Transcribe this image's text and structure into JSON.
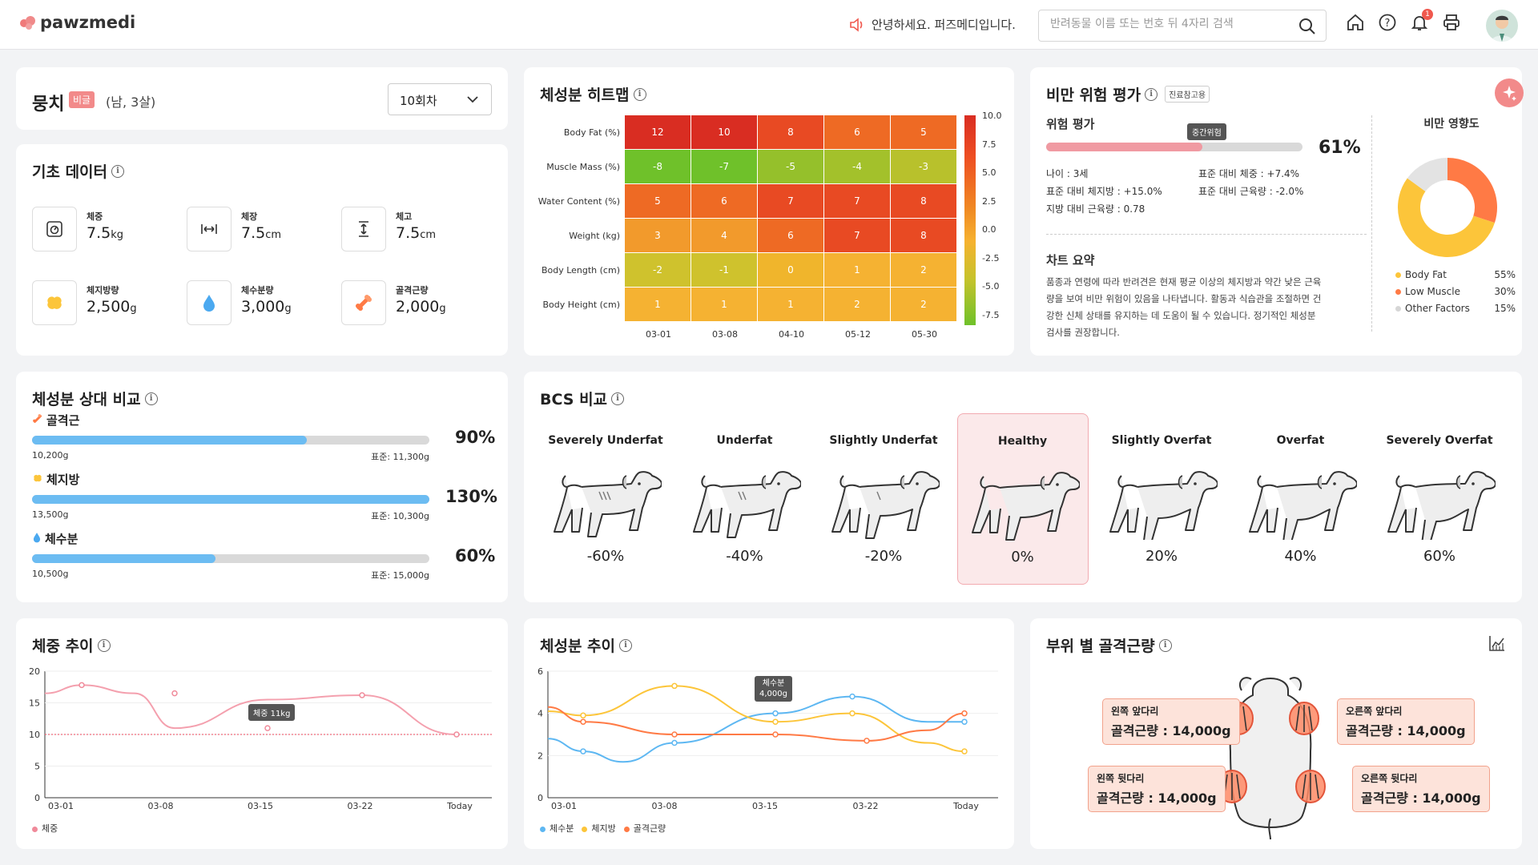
{
  "app": {
    "logo": "pawzmedi",
    "greeting": "안녕하세요. 퍼즈메디입니다.",
    "search_placeholder": "반려동물 이름 또는 번호 뒤 4자리 검색",
    "notification_count": "1"
  },
  "patient": {
    "name": "뭉치",
    "tag": "비글",
    "info": "(남, 3살)",
    "session": "10회차"
  },
  "basic": {
    "title": "기초 데이터",
    "metrics": [
      {
        "label": "체중",
        "value": "7.5",
        "unit": "kg"
      },
      {
        "label": "체장",
        "value": "7.5",
        "unit": "cm"
      },
      {
        "label": "체고",
        "value": "7.5",
        "unit": "cm"
      },
      {
        "label": "체지방량",
        "value": "2,500",
        "unit": "g"
      },
      {
        "label": "체수분량",
        "value": "3,000",
        "unit": "g"
      },
      {
        "label": "골격근량",
        "value": "2,000",
        "unit": "g"
      }
    ]
  },
  "heatmap": {
    "title": "체성분 히트맵",
    "rows": [
      "Body Fat (%)",
      "Muscle Mass (%)",
      "Water Content (%)",
      "Weight (kg)",
      "Body Length (cm)",
      "Body Height (cm)"
    ],
    "cols": [
      "03-01",
      "03-08",
      "04-10",
      "05-12",
      "05-30"
    ],
    "values": [
      [
        12,
        10,
        8,
        6,
        5
      ],
      [
        -8,
        -7,
        -5,
        -4,
        -3
      ],
      [
        5,
        6,
        7,
        7,
        8
      ],
      [
        3,
        4,
        6,
        7,
        8
      ],
      [
        -2,
        -1,
        0,
        1,
        2
      ],
      [
        1,
        1,
        1,
        2,
        2
      ]
    ],
    "scale": [
      "10.0",
      "7.5",
      "5.0",
      "2.5",
      "0.0",
      "-2.5",
      "-5.0",
      "-7.5"
    ]
  },
  "obesity": {
    "title": "비만 위험 평가",
    "tag": "진료참고용",
    "risk_label": "위험 평가",
    "risk_tooltip": "중간위험",
    "risk_pct": "61%",
    "risk_value": 0.61,
    "stats": [
      "나이 : 3세",
      "표준 대비 체중 : +7.4%",
      "표준 대비 체지방 : +15.0%",
      "표준 대비 근육량 : -2.0%",
      "지방 대비 근육량 : 0.78"
    ],
    "summary_title": "차트 요약",
    "summary": [
      "품종과 연령에 따라 반려견은 현재 평균 이상의 체지방과 약간 낮은 근육",
      "량을 보여 비만 위험이 있음을 나타냅니다. 활동과 식습관을 조절하면 건",
      "강한 신체 상태를 유지하는 데 도움이 될 수 있습니다. 정기적인 체성분",
      "검사를 권장합니다."
    ],
    "influence_title": "비만 영향도",
    "influence": [
      {
        "name": "Body Fat",
        "pct": "55%",
        "value": 55,
        "color": "#fcc53a"
      },
      {
        "name": "Low Muscle",
        "pct": "30%",
        "value": 30,
        "color": "#ff7a45"
      },
      {
        "name": "Other Factors",
        "pct": "15%",
        "value": 15,
        "color": "#e3e3e3"
      }
    ]
  },
  "compare": {
    "title": "체성분 상대 비교",
    "items": [
      {
        "label": "골격근",
        "value": "10,200g",
        "std": "표준: 11,300g",
        "pct": "90%",
        "ratio": 0.9
      },
      {
        "label": "체지방",
        "value": "13,500g",
        "std": "표준: 10,300g",
        "pct": "130%",
        "ratio": 1.3
      },
      {
        "label": "체수분",
        "value": "10,500g",
        "std": "표준: 15,000g",
        "pct": "60%",
        "ratio": 0.6
      }
    ]
  },
  "bcs": {
    "title": "BCS 비교",
    "items": [
      {
        "label": "Severely Underfat",
        "pct": "-60%"
      },
      {
        "label": "Underfat",
        "pct": "-40%"
      },
      {
        "label": "Slightly Underfat",
        "pct": "-20%"
      },
      {
        "label": "Healthy",
        "pct": "0%"
      },
      {
        "label": "Slightly Overfat",
        "pct": "20%"
      },
      {
        "label": "Overfat",
        "pct": "40%"
      },
      {
        "label": "Severely Overfat",
        "pct": "60%"
      }
    ],
    "active": 3
  },
  "weight_trend": {
    "title": "체중 추이",
    "tooltip": "체중 11kg",
    "legend": "체중",
    "x": [
      "03-01",
      "03-08",
      "03-15",
      "03-22",
      "Today"
    ],
    "y_ticks": [
      "20",
      "15",
      "10",
      "5",
      "0"
    ],
    "series": [
      16.5,
      17.8,
      16.5,
      11,
      15.5,
      16.2,
      10
    ],
    "ref": 10
  },
  "comp_trend": {
    "title": "체성분 추이",
    "tooltip_l1": "체수분",
    "tooltip_l2": "4,000g",
    "x": [
      "03-01",
      "03-08",
      "03-15",
      "03-22",
      "Today"
    ],
    "y_ticks": [
      "6",
      "4",
      "2",
      "0"
    ],
    "legend": [
      "체수분",
      "체지방",
      "골격근량"
    ]
  },
  "muscle_region": {
    "title": "부위 별 골격근량",
    "regions": [
      {
        "name": "왼쪽 앞다리",
        "value": "골격근량 : 14,000g"
      },
      {
        "name": "오른쪽 앞다리",
        "value": "골격근량 : 14,000g"
      },
      {
        "name": "왼쪽 뒷다리",
        "value": "골격근량 : 14,000g"
      },
      {
        "name": "오른쪽 뒷다리",
        "value": "골격근량 : 14,000g"
      }
    ]
  }
}
